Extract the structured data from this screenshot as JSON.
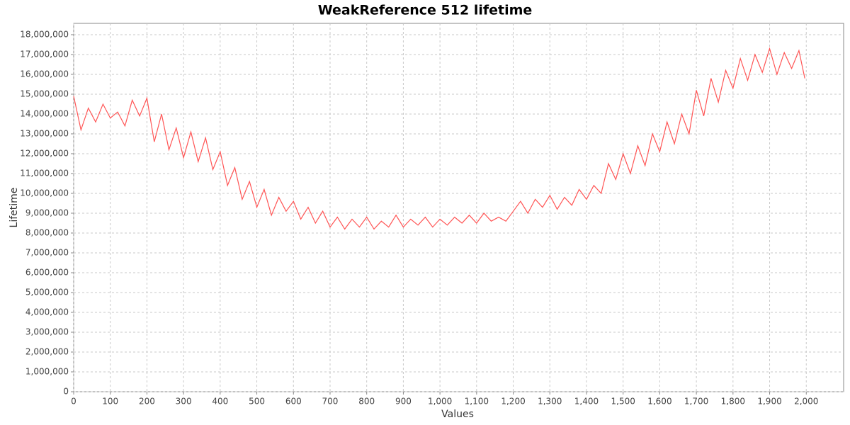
{
  "chart_data": {
    "type": "line",
    "title": "WeakReference 512 lifetime",
    "x_label": "Values",
    "y_label": "Lifetime",
    "color": "#ff5555",
    "grid": true,
    "x": [
      0,
      20,
      40,
      60,
      80,
      100,
      120,
      140,
      160,
      180,
      200,
      220,
      240,
      260,
      280,
      300,
      320,
      340,
      360,
      380,
      400,
      420,
      440,
      460,
      480,
      500,
      520,
      540,
      560,
      580,
      600,
      620,
      640,
      660,
      680,
      700,
      720,
      740,
      760,
      780,
      800,
      820,
      840,
      860,
      880,
      900,
      920,
      940,
      960,
      980,
      1000,
      1020,
      1040,
      1060,
      1080,
      1100,
      1120,
      1140,
      1160,
      1180,
      1200,
      1220,
      1240,
      1260,
      1280,
      1300,
      1320,
      1340,
      1360,
      1380,
      1400,
      1420,
      1440,
      1460,
      1480,
      1500,
      1520,
      1540,
      1560,
      1580,
      1600,
      1620,
      1640,
      1660,
      1680,
      1700,
      1720,
      1740,
      1760,
      1780,
      1800,
      1820,
      1840,
      1860,
      1880,
      1900,
      1920,
      1940,
      1960,
      1980,
      1996
    ],
    "values": [
      14900000,
      13200000,
      14300000,
      13600000,
      14500000,
      13800000,
      14100000,
      13400000,
      14700000,
      13900000,
      14800000,
      12600000,
      14000000,
      12200000,
      13300000,
      11800000,
      13100000,
      11600000,
      12800000,
      11200000,
      12100000,
      10400000,
      11300000,
      9700000,
      10600000,
      9300000,
      10200000,
      8900000,
      9800000,
      9100000,
      9600000,
      8700000,
      9300000,
      8500000,
      9100000,
      8300000,
      8800000,
      8200000,
      8700000,
      8300000,
      8800000,
      8200000,
      8600000,
      8300000,
      8900000,
      8300000,
      8700000,
      8400000,
      8800000,
      8300000,
      8700000,
      8400000,
      8800000,
      8500000,
      8900000,
      8500000,
      9000000,
      8600000,
      8800000,
      8600000,
      9100000,
      9600000,
      9000000,
      9700000,
      9300000,
      9900000,
      9200000,
      9800000,
      9400000,
      10200000,
      9700000,
      10400000,
      10000000,
      11500000,
      10700000,
      12000000,
      11000000,
      12400000,
      11400000,
      13000000,
      12100000,
      13600000,
      12500000,
      14000000,
      13000000,
      15200000,
      13900000,
      15800000,
      14600000,
      16200000,
      15300000,
      16800000,
      15700000,
      17000000,
      16100000,
      17300000,
      16000000,
      17100000,
      16300000,
      17200000,
      15800000
    ],
    "xlim": [
      0,
      2102
    ],
    "xticks": [
      0,
      100,
      200,
      300,
      400,
      500,
      600,
      700,
      800,
      900,
      {
        "value": 1000,
        "label": "1,000"
      },
      {
        "value": 1100,
        "label": "1,100"
      },
      {
        "value": 1200,
        "label": "1,200"
      },
      {
        "value": 1300,
        "label": "1,300"
      },
      {
        "value": 1400,
        "label": "1,400"
      },
      {
        "value": 1500,
        "label": "1,500"
      },
      {
        "value": 1600,
        "label": "1,600"
      },
      {
        "value": 1700,
        "label": "1,700"
      },
      {
        "value": 1800,
        "label": "1,800"
      },
      {
        "value": 1900,
        "label": "1,900"
      },
      {
        "value": 2000,
        "label": "2,000"
      }
    ],
    "ylim": [
      0,
      18570000
    ],
    "yticks": [
      0,
      {
        "value": 1000000,
        "label": "1,000,000"
      },
      {
        "value": 2000000,
        "label": "2,000,000"
      },
      {
        "value": 3000000,
        "label": "3,000,000"
      },
      {
        "value": 4000000,
        "label": "4,000,000"
      },
      {
        "value": 5000000,
        "label": "5,000,000"
      },
      {
        "value": 6000000,
        "label": "6,000,000"
      },
      {
        "value": 7000000,
        "label": "7,000,000"
      },
      {
        "value": 8000000,
        "label": "8,000,000"
      },
      {
        "value": 9000000,
        "label": "9,000,000"
      },
      {
        "value": 10000000,
        "label": "10,000,000"
      },
      {
        "value": 11000000,
        "label": "11,000,000"
      },
      {
        "value": 12000000,
        "label": "12,000,000"
      },
      {
        "value": 13000000,
        "label": "13,000,000"
      },
      {
        "value": 14000000,
        "label": "14,000,000"
      },
      {
        "value": 15000000,
        "label": "15,000,000"
      },
      {
        "value": 16000000,
        "label": "16,000,000"
      },
      {
        "value": 17000000,
        "label": "17,000,000"
      },
      {
        "value": 18000000,
        "label": "18,000,000"
      }
    ]
  }
}
